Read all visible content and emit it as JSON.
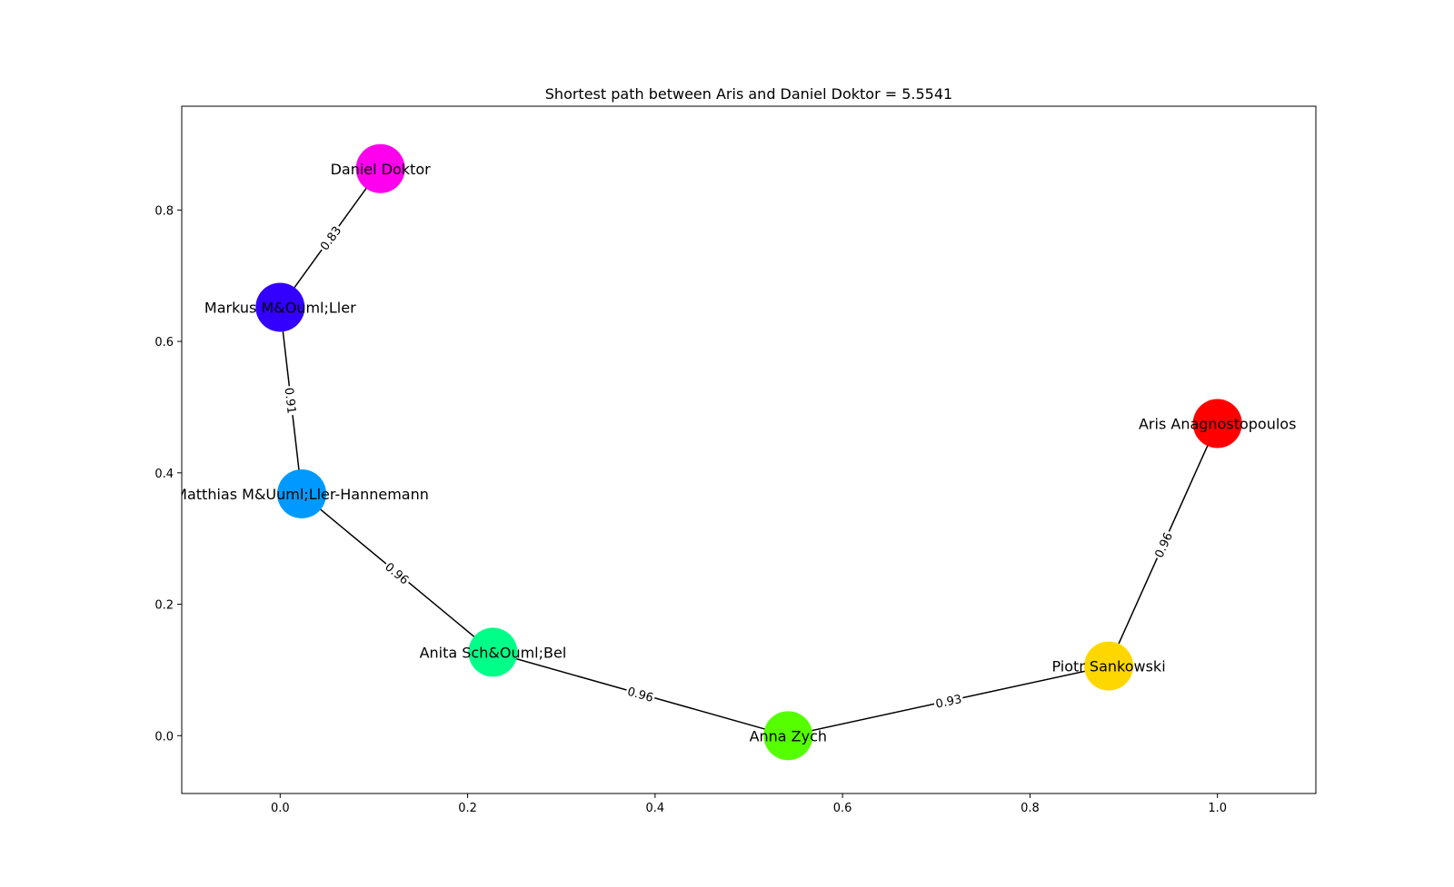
{
  "title": "Shortest path between Aris and Daniel Doktor = 5.5541",
  "chart_data": {
    "type": "network",
    "xlim": [
      -0.105,
      1.105
    ],
    "ylim": [
      -0.088,
      0.958
    ],
    "x_ticks": [
      {
        "value": 0.0,
        "label": "0.0"
      },
      {
        "value": 0.2,
        "label": "0.2"
      },
      {
        "value": 0.4,
        "label": "0.4"
      },
      {
        "value": 0.6,
        "label": "0.6"
      },
      {
        "value": 0.8,
        "label": "0.8"
      },
      {
        "value": 1.0,
        "label": "1.0"
      }
    ],
    "y_ticks": [
      {
        "value": 0.0,
        "label": "0.0"
      },
      {
        "value": 0.2,
        "label": "0.2"
      },
      {
        "value": 0.4,
        "label": "0.4"
      },
      {
        "value": 0.6,
        "label": "0.6"
      },
      {
        "value": 0.8,
        "label": "0.8"
      }
    ],
    "nodes": [
      {
        "id": "daniel",
        "label": "Daniel Doktor",
        "x": 0.107,
        "y": 0.863,
        "color": "#ff00ee"
      },
      {
        "id": "markus",
        "label": "Markus M&Ouml;Ller",
        "x": 0.0,
        "y": 0.652,
        "color": "#3300ff"
      },
      {
        "id": "matthias",
        "label": "Matthias M&Uuml;Ller-Hannemann",
        "x": 0.023,
        "y": 0.368,
        "color": "#0099ff"
      },
      {
        "id": "anita",
        "label": "Anita Sch&Ouml;Bel",
        "x": 0.227,
        "y": 0.127,
        "color": "#00ff88"
      },
      {
        "id": "anna",
        "label": "Anna Zych",
        "x": 0.542,
        "y": 0.0,
        "color": "#55ff00"
      },
      {
        "id": "piotr",
        "label": "Piotr Sankowski",
        "x": 0.884,
        "y": 0.106,
        "color": "#ffd700"
      },
      {
        "id": "aris",
        "label": "Aris Anagnostopoulos",
        "x": 1.0,
        "y": 0.475,
        "color": "#ff0000"
      }
    ],
    "edges": [
      {
        "source": "daniel",
        "target": "markus",
        "weight": "0.83"
      },
      {
        "source": "markus",
        "target": "matthias",
        "weight": "0.91"
      },
      {
        "source": "matthias",
        "target": "anita",
        "weight": "0.96"
      },
      {
        "source": "anita",
        "target": "anna",
        "weight": "0.96"
      },
      {
        "source": "anna",
        "target": "piotr",
        "weight": "0.93"
      },
      {
        "source": "piotr",
        "target": "aris",
        "weight": "0.96"
      }
    ]
  }
}
